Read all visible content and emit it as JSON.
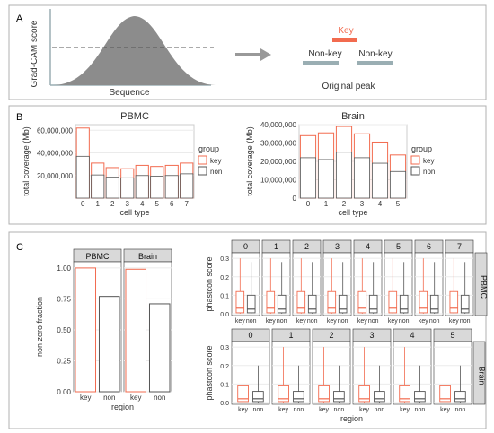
{
  "colors": {
    "key": "#f26b4f",
    "non": "#555555",
    "grid": "#ebebeb",
    "strip_bg": "#d9d9d9",
    "curve_fill": "#8c8c8c",
    "arrow": "#999999",
    "peak_bar": "#9aaeb3",
    "panel_border": "#b0b0b0"
  },
  "panelA": {
    "label": "A",
    "ylabel": "Grad-CAM score",
    "xlabel": "Sequence",
    "key_label": "Key",
    "nonkey_left": "Non-key",
    "nonkey_right": "Non-key",
    "caption": "Original peak"
  },
  "panelB": {
    "label": "B"
  },
  "panelC": {
    "label": "C"
  },
  "chart_data": [
    {
      "id": "pbmc_coverage",
      "type": "bar",
      "title": "PBMC",
      "xlabel": "cell type",
      "ylabel": "total coverage (Mb)",
      "categories": [
        "0",
        "1",
        "2",
        "3",
        "4",
        "5",
        "6",
        "7"
      ],
      "series": [
        {
          "name": "key",
          "values": [
            62000000,
            31000000,
            27000000,
            26000000,
            29000000,
            28000000,
            29000000,
            31000000
          ]
        },
        {
          "name": "non",
          "values": [
            37000000,
            20500000,
            18500000,
            18000000,
            20000000,
            19500000,
            20000000,
            21500000
          ]
        }
      ],
      "ylim": [
        0,
        65000000
      ],
      "yticks": [
        20000000,
        40000000,
        60000000
      ],
      "ytick_labels": [
        "20,000,000",
        "40,000,000",
        "60,000,000"
      ],
      "legend_title": "group",
      "legend": [
        "key",
        "non"
      ],
      "grid": true
    },
    {
      "id": "brain_coverage",
      "type": "bar",
      "title": "Brain",
      "xlabel": "cell type",
      "ylabel": "total coverage (Mb)",
      "categories": [
        "0",
        "1",
        "2",
        "3",
        "4",
        "5"
      ],
      "series": [
        {
          "name": "key",
          "values": [
            34000000,
            35500000,
            39000000,
            35000000,
            30500000,
            23500000
          ]
        },
        {
          "name": "non",
          "values": [
            22000000,
            21000000,
            25000000,
            22000000,
            19000000,
            14500000
          ]
        }
      ],
      "ylim": [
        0,
        40000000
      ],
      "yticks": [
        0,
        10000000,
        20000000,
        30000000,
        40000000
      ],
      "ytick_labels": [
        "0",
        "10,000,000",
        "20,000,000",
        "30,000,000",
        "40,000,000"
      ],
      "legend_title": "group",
      "legend": [
        "key",
        "non"
      ],
      "grid": true
    },
    {
      "id": "nonzero_fraction",
      "type": "bar",
      "xlabel": "region",
      "ylabel": "non zero fraction",
      "facets": [
        {
          "name": "PBMC",
          "categories": [
            "key",
            "non"
          ],
          "values": [
            1.0,
            0.77
          ]
        },
        {
          "name": "Brain",
          "categories": [
            "key",
            "non"
          ],
          "values": [
            0.99,
            0.71
          ]
        }
      ],
      "ylim": [
        0,
        1.05
      ],
      "yticks": [
        0,
        0.25,
        0.5,
        0.75,
        1.0
      ],
      "ytick_labels": [
        "0.00",
        "0.25",
        "0.50",
        "0.75",
        "1.00"
      ],
      "grid": true
    },
    {
      "id": "phastcon_pbmc",
      "type": "box",
      "row_label": "PBMC",
      "ylabel": "phastcon score",
      "facets": [
        "0",
        "1",
        "2",
        "3",
        "4",
        "5",
        "6",
        "7"
      ],
      "groups": [
        "key",
        "non"
      ],
      "boxes": {
        "key": {
          "whisker_low": 0.0,
          "q1": 0.005,
          "median": 0.03,
          "q3": 0.12,
          "whisker_high": 0.3
        },
        "non": {
          "whisker_low": 0.0,
          "q1": 0.005,
          "median": 0.025,
          "q3": 0.1,
          "whisker_high": 0.28
        }
      },
      "ylim": [
        -0.01,
        0.33
      ],
      "yticks": [
        0,
        0.1,
        0.2,
        0.3
      ],
      "ytick_labels": [
        "0.0",
        "0.1",
        "0.2",
        "0.3"
      ],
      "grid": true
    },
    {
      "id": "phastcon_brain",
      "type": "box",
      "row_label": "Brain",
      "xlabel": "region",
      "ylabel": "phastcon score",
      "facets": [
        "0",
        "1",
        "2",
        "3",
        "4",
        "5"
      ],
      "groups": [
        "key",
        "non"
      ],
      "boxes": {
        "key": {
          "whisker_low": 0.0,
          "q1": 0.005,
          "median": 0.02,
          "q3": 0.09,
          "whisker_high": 0.3
        },
        "non": {
          "whisker_low": 0.0,
          "q1": 0.005,
          "median": 0.02,
          "q3": 0.06,
          "whisker_high": 0.2
        }
      },
      "ylim": [
        -0.01,
        0.33
      ],
      "yticks": [
        0,
        0.1,
        0.2,
        0.3
      ],
      "ytick_labels": [
        "0.0",
        "0.1",
        "0.2",
        "0.3"
      ],
      "grid": true
    }
  ]
}
